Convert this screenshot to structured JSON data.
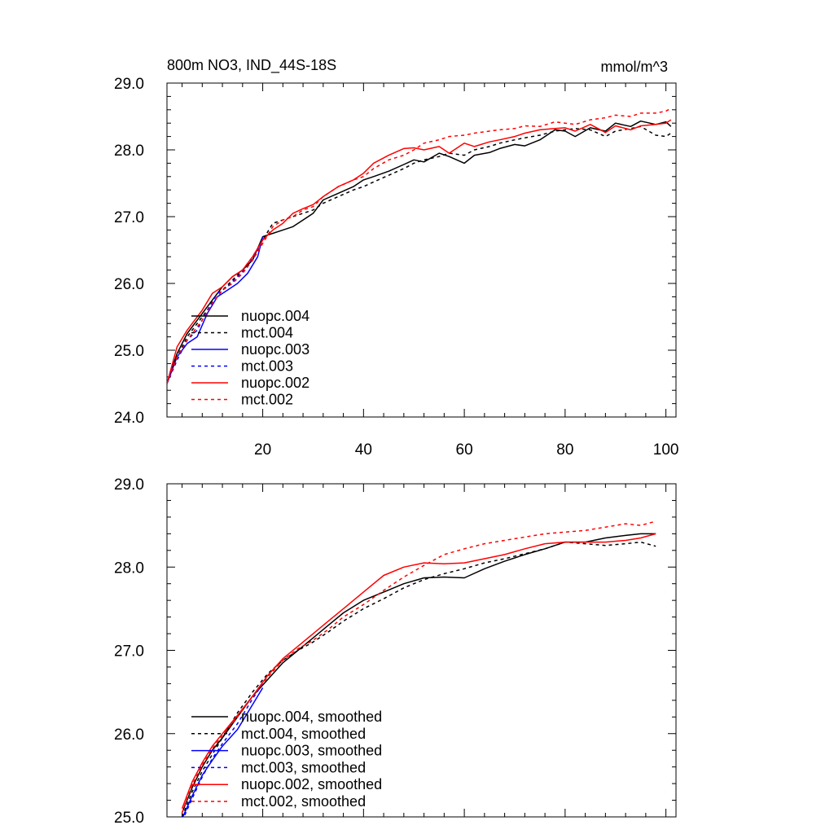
{
  "chart_data": [
    {
      "type": "line",
      "title_left": "800m NO3, IND_44S-18S",
      "title_right": "mmol/m^3",
      "xlim": [
        1,
        102
      ],
      "ylim": [
        24.0,
        29.0
      ],
      "yticks": [
        "24.0",
        "25.0",
        "26.0",
        "27.0",
        "28.0",
        "29.0"
      ],
      "xticks": [
        "20",
        "40",
        "60",
        "80",
        "100"
      ],
      "legend": [
        {
          "name": "nuopc.004",
          "color": "#000000",
          "dash": false
        },
        {
          "name": "mct.004",
          "color": "#000000",
          "dash": true
        },
        {
          "name": "nuopc.003",
          "color": "#0000ff",
          "dash": false
        },
        {
          "name": "mct.003",
          "color": "#0000ff",
          "dash": true
        },
        {
          "name": "nuopc.002",
          "color": "#ff0000",
          "dash": false
        },
        {
          "name": "mct.002",
          "color": "#ff0000",
          "dash": true
        }
      ],
      "series": [
        {
          "name": "nuopc.004",
          "color": "#000000",
          "dash": false,
          "x": [
            1,
            3,
            5,
            8,
            10,
            12,
            14,
            16,
            18,
            20,
            22,
            24,
            26,
            28,
            30,
            32,
            35,
            38,
            40,
            42,
            45,
            48,
            50,
            52,
            55,
            57,
            60,
            62,
            65,
            67,
            70,
            72,
            75,
            78,
            80,
            82,
            85,
            88,
            90,
            93,
            95,
            98,
            100,
            101
          ],
          "y": [
            24.5,
            24.95,
            25.25,
            25.55,
            25.75,
            25.95,
            26.1,
            26.2,
            26.35,
            26.7,
            26.75,
            26.8,
            26.85,
            26.95,
            27.05,
            27.25,
            27.35,
            27.45,
            27.55,
            27.6,
            27.68,
            27.78,
            27.85,
            27.82,
            27.95,
            27.9,
            27.8,
            27.92,
            27.96,
            28.02,
            28.08,
            28.06,
            28.15,
            28.3,
            28.28,
            28.2,
            28.33,
            28.28,
            28.4,
            28.35,
            28.43,
            28.38,
            28.42,
            28.35
          ]
        },
        {
          "name": "mct.004",
          "color": "#000000",
          "dash": true,
          "x": [
            1,
            3,
            5,
            8,
            10,
            12,
            14,
            16,
            18,
            20,
            22,
            24,
            26,
            28,
            30,
            32,
            35,
            38,
            40,
            42,
            45,
            48,
            50,
            52,
            55,
            57,
            60,
            62,
            65,
            67,
            70,
            72,
            75,
            78,
            80,
            82,
            85,
            88,
            90,
            93,
            95,
            98,
            100,
            101
          ],
          "y": [
            24.5,
            24.9,
            25.2,
            25.5,
            25.7,
            25.9,
            26.05,
            26.2,
            26.4,
            26.65,
            26.9,
            26.95,
            27.0,
            27.05,
            27.1,
            27.2,
            27.3,
            27.4,
            27.45,
            27.52,
            27.62,
            27.72,
            27.8,
            27.85,
            27.9,
            27.95,
            27.92,
            28.0,
            28.05,
            28.1,
            28.15,
            28.18,
            28.22,
            28.28,
            28.3,
            28.32,
            28.3,
            28.2,
            28.28,
            28.32,
            28.35,
            28.22,
            28.2,
            28.25
          ]
        },
        {
          "name": "nuopc.003",
          "color": "#0000ff",
          "dash": false,
          "x": [
            1,
            3,
            5,
            7,
            9,
            11,
            13,
            15,
            17,
            19,
            20
          ],
          "y": [
            24.5,
            24.9,
            25.1,
            25.2,
            25.55,
            25.8,
            25.9,
            26.0,
            26.15,
            26.4,
            26.7
          ]
        },
        {
          "name": "mct.003",
          "color": "#0000ff",
          "dash": true,
          "x": [
            1,
            3,
            5,
            7,
            9,
            11,
            13,
            15,
            17,
            19,
            20
          ],
          "y": [
            24.5,
            24.85,
            25.15,
            25.3,
            25.6,
            25.85,
            25.95,
            26.1,
            26.25,
            26.5,
            26.65
          ]
        },
        {
          "name": "nuopc.002",
          "color": "#ff0000",
          "dash": false,
          "x": [
            1,
            3,
            5,
            8,
            10,
            12,
            14,
            16,
            18,
            20,
            22,
            24,
            26,
            28,
            30,
            32,
            35,
            38,
            40,
            42,
            45,
            48,
            50,
            52,
            55,
            57,
            60,
            62,
            65,
            67,
            70,
            72,
            75,
            78,
            80,
            82,
            85,
            88,
            90,
            93,
            95,
            98,
            100,
            101
          ],
          "y": [
            24.5,
            25.05,
            25.3,
            25.6,
            25.85,
            25.95,
            26.1,
            26.2,
            26.4,
            26.65,
            26.8,
            26.9,
            27.05,
            27.12,
            27.18,
            27.3,
            27.45,
            27.55,
            27.65,
            27.8,
            27.92,
            28.02,
            28.03,
            28.0,
            28.05,
            27.95,
            28.1,
            28.05,
            28.12,
            28.15,
            28.2,
            28.25,
            28.3,
            28.32,
            28.33,
            28.28,
            28.38,
            28.26,
            28.36,
            28.3,
            28.36,
            28.38,
            28.4,
            28.45
          ]
        },
        {
          "name": "mct.002",
          "color": "#ff0000",
          "dash": true,
          "x": [
            1,
            3,
            5,
            8,
            10,
            12,
            14,
            16,
            18,
            20,
            22,
            24,
            26,
            28,
            30,
            32,
            35,
            38,
            40,
            42,
            45,
            48,
            50,
            52,
            55,
            57,
            60,
            62,
            65,
            67,
            70,
            72,
            75,
            78,
            80,
            82,
            85,
            88,
            90,
            93,
            95,
            98,
            100,
            101
          ],
          "y": [
            24.5,
            24.9,
            25.15,
            25.45,
            25.7,
            25.9,
            26.0,
            26.15,
            26.35,
            26.6,
            26.85,
            26.95,
            27.0,
            27.1,
            27.15,
            27.3,
            27.45,
            27.55,
            27.6,
            27.72,
            27.85,
            27.92,
            28.0,
            28.1,
            28.15,
            28.2,
            28.22,
            28.25,
            28.28,
            28.3,
            28.32,
            28.36,
            28.35,
            28.42,
            28.4,
            28.38,
            28.45,
            28.48,
            28.52,
            28.5,
            28.55,
            28.55,
            28.58,
            28.62
          ]
        }
      ]
    },
    {
      "type": "line",
      "xlim": [
        1,
        102
      ],
      "ylim": [
        25.0,
        29.0
      ],
      "yticks": [
        "25.0",
        "26.0",
        "27.0",
        "28.0",
        "29.0"
      ],
      "xticks": [],
      "legend": [
        {
          "name": "nuopc.004, smoothed",
          "color": "#000000",
          "dash": false
        },
        {
          "name": "mct.004, smoothed",
          "color": "#000000",
          "dash": true
        },
        {
          "name": "nuopc.003, smoothed",
          "color": "#0000ff",
          "dash": false
        },
        {
          "name": "mct.003, smoothed",
          "color": "#0000ff",
          "dash": true
        },
        {
          "name": "nuopc.002, smoothed",
          "color": "#ff0000",
          "dash": false
        },
        {
          "name": "mct.002, smoothed",
          "color": "#ff0000",
          "dash": true
        }
      ],
      "series": [
        {
          "name": "nuopc.004, smoothed",
          "color": "#000000",
          "dash": false,
          "x": [
            4,
            6,
            8,
            10,
            12,
            15,
            18,
            21,
            24,
            27,
            30,
            33,
            36,
            40,
            44,
            48,
            52,
            56,
            60,
            64,
            68,
            72,
            76,
            80,
            84,
            88,
            92,
            95,
            98
          ],
          "y": [
            25.05,
            25.35,
            25.6,
            25.8,
            25.95,
            26.2,
            26.45,
            26.65,
            26.85,
            27.0,
            27.15,
            27.3,
            27.45,
            27.6,
            27.7,
            27.8,
            27.87,
            27.88,
            27.87,
            27.98,
            28.07,
            28.15,
            28.22,
            28.3,
            28.3,
            28.35,
            28.38,
            28.4,
            28.4
          ]
        },
        {
          "name": "mct.004, smoothed",
          "color": "#000000",
          "dash": true,
          "x": [
            4,
            6,
            8,
            10,
            12,
            15,
            18,
            21,
            24,
            27,
            30,
            33,
            36,
            40,
            44,
            48,
            52,
            56,
            60,
            64,
            68,
            72,
            76,
            80,
            84,
            88,
            92,
            95,
            98
          ],
          "y": [
            25.0,
            25.3,
            25.55,
            25.75,
            25.95,
            26.25,
            26.5,
            26.72,
            26.88,
            27.0,
            27.1,
            27.22,
            27.35,
            27.5,
            27.62,
            27.75,
            27.85,
            27.92,
            27.98,
            28.05,
            28.1,
            28.16,
            28.22,
            28.3,
            28.28,
            28.26,
            28.28,
            28.3,
            28.25
          ]
        },
        {
          "name": "nuopc.003, smoothed",
          "color": "#0000ff",
          "dash": false,
          "x": [
            4,
            6,
            8,
            10,
            12,
            15,
            18,
            20
          ],
          "y": [
            24.98,
            25.25,
            25.5,
            25.68,
            25.85,
            26.05,
            26.35,
            26.55
          ]
        },
        {
          "name": "mct.003, smoothed",
          "color": "#0000ff",
          "dash": true,
          "x": [
            4,
            6,
            8,
            10,
            12,
            15,
            18,
            20
          ],
          "y": [
            24.95,
            25.22,
            25.48,
            25.7,
            25.88,
            26.12,
            26.42,
            26.6
          ]
        },
        {
          "name": "nuopc.002, smoothed",
          "color": "#ff0000",
          "dash": false,
          "x": [
            4,
            6,
            8,
            10,
            12,
            15,
            18,
            21,
            24,
            27,
            30,
            33,
            36,
            40,
            44,
            48,
            52,
            56,
            60,
            64,
            68,
            72,
            76,
            80,
            84,
            88,
            92,
            95,
            98
          ],
          "y": [
            25.1,
            25.42,
            25.65,
            25.85,
            26.0,
            26.22,
            26.45,
            26.7,
            26.9,
            27.05,
            27.2,
            27.35,
            27.5,
            27.7,
            27.9,
            28.0,
            28.05,
            28.04,
            28.05,
            28.1,
            28.15,
            28.22,
            28.28,
            28.3,
            28.3,
            28.3,
            28.32,
            28.35,
            28.4
          ]
        },
        {
          "name": "mct.002, smoothed",
          "color": "#ff0000",
          "dash": true,
          "x": [
            4,
            6,
            8,
            10,
            12,
            15,
            18,
            21,
            24,
            27,
            30,
            33,
            36,
            40,
            44,
            48,
            52,
            56,
            60,
            64,
            68,
            72,
            76,
            80,
            84,
            88,
            92,
            95,
            98
          ],
          "y": [
            25.05,
            25.38,
            25.62,
            25.82,
            25.98,
            26.2,
            26.45,
            26.68,
            26.88,
            27.02,
            27.12,
            27.25,
            27.4,
            27.55,
            27.72,
            27.88,
            28.02,
            28.15,
            28.22,
            28.28,
            28.32,
            28.36,
            28.4,
            28.42,
            28.44,
            28.48,
            28.52,
            28.5,
            28.55
          ]
        }
      ]
    }
  ]
}
